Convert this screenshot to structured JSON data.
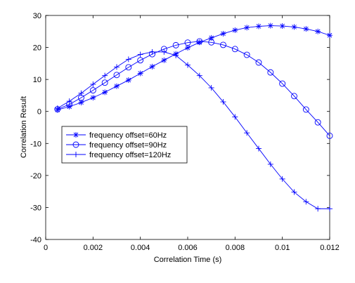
{
  "chart_data": {
    "type": "line",
    "xlabel": "Correlation Time (s)",
    "ylabel": "Correlation Result",
    "xlim": [
      0,
      0.012
    ],
    "ylim": [
      -40,
      30
    ],
    "xticks": [
      "0",
      "0.002",
      "0.004",
      "0.006",
      "0.008",
      "0.01",
      "0.012"
    ],
    "yticks": [
      "-40",
      "-30",
      "-20",
      "-10",
      "0",
      "10",
      "20",
      "30"
    ],
    "grid": false,
    "legend_position": "middle-left",
    "line_color": "#0000ff",
    "series": [
      {
        "name": "frequency offset=60Hz",
        "marker": "star",
        "x": [
          0.0005,
          0.001,
          0.0015,
          0.002,
          0.0025,
          0.003,
          0.0035,
          0.004,
          0.0045,
          0.005,
          0.0055,
          0.006,
          0.0065,
          0.007,
          0.0075,
          0.008,
          0.0085,
          0.009,
          0.0095,
          0.01,
          0.0105,
          0.011,
          0.0115,
          0.012
        ],
        "y": [
          0.5,
          1.5,
          2.8,
          4.3,
          6.0,
          7.9,
          9.8,
          11.9,
          14.0,
          16.0,
          18.0,
          19.9,
          21.6,
          23.0,
          24.3,
          25.4,
          26.2,
          26.6,
          26.8,
          26.7,
          26.4,
          25.8,
          25.0,
          23.8
        ]
      },
      {
        "name": "frequency offset=90Hz",
        "marker": "circle",
        "x": [
          0.0005,
          0.001,
          0.0015,
          0.002,
          0.0025,
          0.003,
          0.0035,
          0.004,
          0.0045,
          0.005,
          0.0055,
          0.006,
          0.0065,
          0.007,
          0.0075,
          0.008,
          0.0085,
          0.009,
          0.0095,
          0.01,
          0.0105,
          0.011,
          0.0115,
          0.012
        ],
        "y": [
          0.7,
          2.2,
          4.3,
          6.6,
          9.0,
          11.4,
          13.8,
          16.0,
          17.9,
          19.5,
          20.7,
          21.5,
          21.9,
          21.6,
          20.8,
          19.5,
          17.7,
          15.3,
          12.2,
          8.7,
          4.8,
          0.6,
          -3.4,
          -7.6
        ]
      },
      {
        "name": "frequency offset=120Hz",
        "marker": "plus",
        "x": [
          0.0005,
          0.001,
          0.0015,
          0.002,
          0.0025,
          0.003,
          0.0035,
          0.004,
          0.0045,
          0.005,
          0.0055,
          0.006,
          0.0065,
          0.007,
          0.0075,
          0.008,
          0.0085,
          0.009,
          0.0095,
          0.01,
          0.0105,
          0.011,
          0.0115,
          0.012
        ],
        "y": [
          1.0,
          3.2,
          5.7,
          8.5,
          11.2,
          13.9,
          16.3,
          17.8,
          18.6,
          18.6,
          17.5,
          14.5,
          11.2,
          7.4,
          3.0,
          -1.7,
          -6.7,
          -11.6,
          -16.5,
          -21.1,
          -25.2,
          -28.2,
          -30.4,
          -30.4
        ]
      }
    ]
  }
}
